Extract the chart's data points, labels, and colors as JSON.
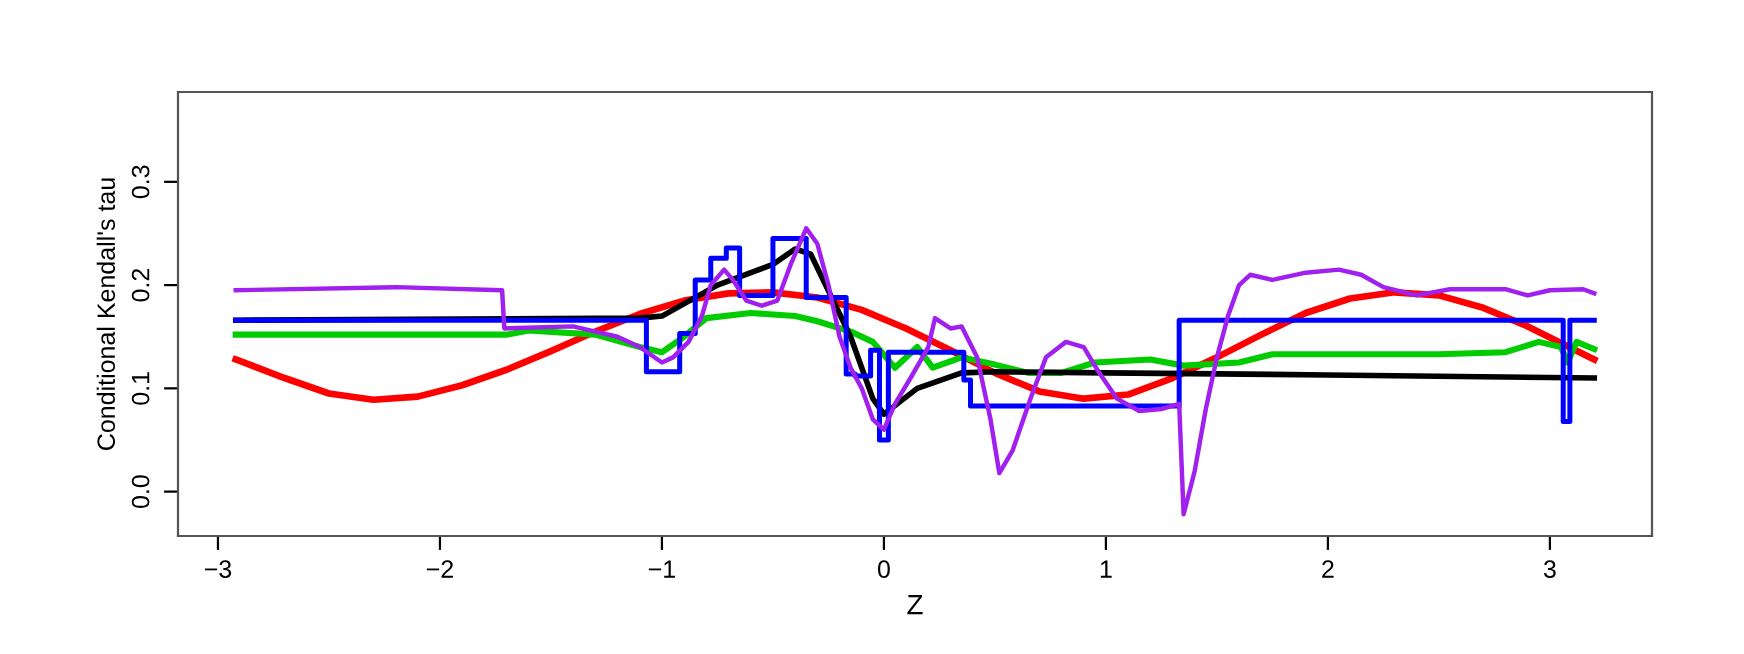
{
  "chart_data": {
    "type": "line",
    "xlabel": "Z",
    "ylabel": "Conditional Kendall's tau",
    "xlim": [
      -3.18,
      3.46
    ],
    "ylim": [
      -0.043,
      0.387
    ],
    "xticks": [
      {
        "value": -3,
        "label": "−3"
      },
      {
        "value": -2,
        "label": "−2"
      },
      {
        "value": -1,
        "label": "−1"
      },
      0,
      1,
      2,
      3
    ],
    "yticks": [
      {
        "value": 0,
        "label": "0.0"
      },
      0.1,
      0.2,
      0.3
    ],
    "grid": false,
    "line_style": "solid",
    "marker": "none",
    "series": [
      {
        "color": "#ff0000",
        "x": [
          -2.92,
          -2.7,
          -2.5,
          -2.3,
          -2.1,
          -1.9,
          -1.7,
          -1.5,
          -1.3,
          -1.1,
          -0.9,
          -0.7,
          -0.5,
          -0.3,
          -0.1,
          0.1,
          0.3,
          0.5,
          0.7,
          0.9,
          1.1,
          1.3,
          1.5,
          1.7,
          1.9,
          2.1,
          2.3,
          2.5,
          2.7,
          2.9,
          3.2
        ],
        "values": [
          0.128,
          0.11,
          0.095,
          0.089,
          0.092,
          0.103,
          0.118,
          0.136,
          0.155,
          0.172,
          0.185,
          0.192,
          0.193,
          0.188,
          0.176,
          0.158,
          0.137,
          0.115,
          0.097,
          0.09,
          0.094,
          0.11,
          0.13,
          0.152,
          0.173,
          0.187,
          0.193,
          0.19,
          0.178,
          0.16,
          0.128
        ]
      },
      {
        "color": "#00cc00",
        "x": [
          -2.92,
          -1.7,
          -1.6,
          -1.3,
          -1.1,
          -1.0,
          -0.9,
          -0.8,
          -0.6,
          -0.4,
          -0.3,
          -0.15,
          -0.05,
          0.05,
          0.15,
          0.22,
          0.35,
          0.5,
          0.65,
          0.8,
          0.95,
          1.2,
          1.35,
          1.6,
          1.75,
          2.5,
          2.8,
          2.95,
          3.05,
          3.08,
          3.12,
          3.2
        ],
        "values": [
          0.152,
          0.152,
          0.156,
          0.152,
          0.14,
          0.135,
          0.15,
          0.168,
          0.173,
          0.17,
          0.165,
          0.155,
          0.145,
          0.12,
          0.14,
          0.12,
          0.13,
          0.123,
          0.115,
          0.115,
          0.125,
          0.128,
          0.122,
          0.125,
          0.133,
          0.133,
          0.135,
          0.145,
          0.14,
          0.125,
          0.145,
          0.138
        ]
      },
      {
        "color": "#000000",
        "x": [
          -2.92,
          -1.1,
          -1.0,
          -0.75,
          -0.5,
          -0.4,
          -0.33,
          -0.15,
          -0.05,
          0.0,
          0.15,
          0.35,
          0.5,
          1.0,
          2.0,
          3.2
        ],
        "values": [
          0.166,
          0.168,
          0.17,
          0.2,
          0.22,
          0.235,
          0.23,
          0.15,
          0.09,
          0.075,
          0.1,
          0.115,
          0.116,
          0.115,
          0.113,
          0.11
        ]
      },
      {
        "type": "step",
        "color": "#0000ff",
        "x": [
          -2.92,
          -1.07,
          -0.92,
          -0.85,
          -0.78,
          -0.71,
          -0.65,
          -0.5,
          -0.35,
          -0.17,
          -0.13,
          -0.06,
          -0.02,
          0.02,
          0.03,
          0.36,
          0.39,
          1.33,
          3.06,
          3.09,
          3.2
        ],
        "values": [
          0.166,
          0.116,
          0.153,
          0.205,
          0.226,
          0.236,
          0.19,
          0.245,
          0.188,
          0.114,
          0.112,
          0.137,
          0.05,
          0.135,
          0.135,
          0.108,
          0.083,
          0.166,
          0.068,
          0.166,
          0.166
        ]
      },
      {
        "color": "#a020f0",
        "x": [
          -2.92,
          -2.2,
          -1.72,
          -1.71,
          -1.4,
          -1.3,
          -1.2,
          -1.1,
          -1.0,
          -0.95,
          -0.88,
          -0.82,
          -0.78,
          -0.72,
          -0.68,
          -0.62,
          -0.55,
          -0.48,
          -0.42,
          -0.38,
          -0.35,
          -0.3,
          -0.25,
          -0.2,
          -0.15,
          -0.1,
          -0.05,
          0.0,
          0.05,
          0.12,
          0.2,
          0.23,
          0.3,
          0.35,
          0.42,
          0.48,
          0.52,
          0.58,
          0.66,
          0.73,
          0.82,
          0.9,
          0.97,
          1.05,
          1.15,
          1.25,
          1.33,
          1.35,
          1.4,
          1.45,
          1.5,
          1.55,
          1.6,
          1.65,
          1.75,
          1.9,
          2.05,
          2.15,
          2.25,
          2.4,
          2.55,
          2.8,
          2.9,
          3.0,
          3.15,
          3.2
        ],
        "values": [
          0.195,
          0.198,
          0.195,
          0.158,
          0.16,
          0.155,
          0.15,
          0.14,
          0.125,
          0.13,
          0.145,
          0.17,
          0.2,
          0.215,
          0.205,
          0.185,
          0.18,
          0.185,
          0.22,
          0.24,
          0.255,
          0.24,
          0.2,
          0.15,
          0.12,
          0.1,
          0.07,
          0.06,
          0.085,
          0.11,
          0.14,
          0.168,
          0.158,
          0.16,
          0.13,
          0.07,
          0.018,
          0.04,
          0.09,
          0.13,
          0.145,
          0.14,
          0.115,
          0.09,
          0.078,
          0.08,
          0.085,
          -0.022,
          0.02,
          0.08,
          0.13,
          0.17,
          0.2,
          0.21,
          0.205,
          0.212,
          0.215,
          0.21,
          0.198,
          0.19,
          0.196,
          0.196,
          0.19,
          0.195,
          0.196,
          0.192
        ]
      }
    ]
  }
}
